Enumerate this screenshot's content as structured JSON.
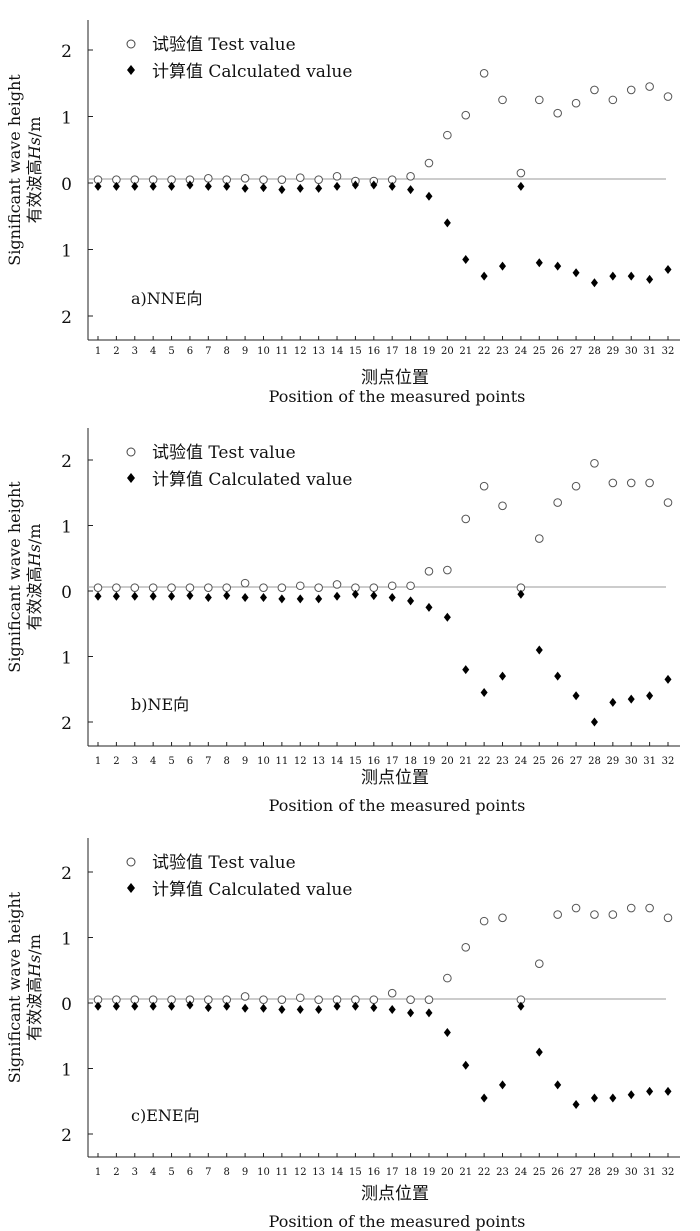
{
  "legend": {
    "test_label": "试验值 Test value",
    "calc_label": "计算值 Calculated value"
  },
  "y_axis_title": {
    "line1": "Significant wave height",
    "line2_prefix": "有效波高",
    "line2_italic": "Hs",
    "line2_suffix": "/m"
  },
  "x_axis_title": {
    "cn": "测点位置",
    "en": "Position of the measured points"
  },
  "chart_data": [
    {
      "type": "scatter",
      "panel_label": "a)NNE向",
      "x": [
        1,
        2,
        3,
        4,
        5,
        6,
        7,
        8,
        9,
        10,
        11,
        12,
        13,
        14,
        15,
        16,
        17,
        18,
        19,
        20,
        21,
        22,
        23,
        24,
        25,
        26,
        27,
        28,
        29,
        30,
        31,
        32
      ],
      "y_tick_labels": [
        "2",
        "1",
        "0",
        "1",
        "2"
      ],
      "ylim": [
        -2.5,
        2.2
      ],
      "series": [
        {
          "name": "试验值 Test value",
          "marker": "open-circle",
          "values": [
            0.05,
            0.05,
            0.05,
            0.05,
            0.05,
            0.05,
            0.07,
            0.05,
            0.07,
            0.05,
            0.05,
            0.08,
            0.05,
            0.1,
            0.03,
            0.03,
            0.05,
            0.1,
            0.3,
            0.72,
            1.02,
            1.65,
            1.25,
            0.15,
            1.25,
            1.05,
            1.2,
            1.4,
            1.25,
            1.4,
            1.45,
            1.3
          ]
        },
        {
          "name": "计算值 Calculated value",
          "marker": "filled-diamond",
          "values": [
            -0.05,
            -0.05,
            -0.05,
            -0.05,
            -0.05,
            -0.03,
            -0.05,
            -0.05,
            -0.08,
            -0.07,
            -0.1,
            -0.08,
            -0.08,
            -0.05,
            -0.03,
            -0.03,
            -0.05,
            -0.1,
            -0.2,
            -0.6,
            -1.15,
            -1.4,
            -1.25,
            -0.05,
            -1.2,
            -1.25,
            -1.35,
            -1.5,
            -1.4,
            -1.4,
            -1.45,
            -1.3
          ]
        }
      ]
    },
    {
      "type": "scatter",
      "panel_label": "b)NE向",
      "x": [
        1,
        2,
        3,
        4,
        5,
        6,
        7,
        8,
        9,
        10,
        11,
        12,
        13,
        14,
        15,
        16,
        17,
        18,
        19,
        20,
        21,
        22,
        23,
        24,
        25,
        26,
        27,
        28,
        29,
        30,
        31,
        32
      ],
      "y_tick_labels": [
        "2",
        "1",
        "0",
        "1",
        "2"
      ],
      "ylim": [
        -2.5,
        2.2
      ],
      "series": [
        {
          "name": "试验值 Test value",
          "marker": "open-circle",
          "values": [
            0.05,
            0.05,
            0.05,
            0.05,
            0.05,
            0.05,
            0.05,
            0.05,
            0.12,
            0.05,
            0.05,
            0.08,
            0.05,
            0.1,
            0.05,
            0.05,
            0.08,
            0.08,
            0.3,
            0.32,
            1.1,
            1.6,
            1.3,
            0.05,
            0.8,
            1.35,
            1.6,
            1.95,
            1.65,
            1.65,
            1.65,
            1.35
          ]
        },
        {
          "name": "计算值 Calculated value",
          "marker": "filled-diamond",
          "values": [
            -0.08,
            -0.08,
            -0.08,
            -0.08,
            -0.08,
            -0.07,
            -0.1,
            -0.07,
            -0.1,
            -0.1,
            -0.12,
            -0.12,
            -0.12,
            -0.08,
            -0.05,
            -0.07,
            -0.1,
            -0.15,
            -0.25,
            -0.4,
            -1.2,
            -1.55,
            -1.3,
            -0.05,
            -0.9,
            -1.3,
            -1.6,
            -2.0,
            -1.7,
            -1.65,
            -1.6,
            -1.35
          ]
        }
      ]
    },
    {
      "type": "scatter",
      "panel_label": "c)ENE向",
      "x": [
        1,
        2,
        3,
        4,
        5,
        6,
        7,
        8,
        9,
        10,
        11,
        12,
        13,
        14,
        15,
        16,
        17,
        18,
        19,
        20,
        21,
        22,
        23,
        24,
        25,
        26,
        27,
        28,
        29,
        30,
        31,
        32
      ],
      "y_tick_labels": [
        "2",
        "1",
        "0",
        "1",
        "2"
      ],
      "ylim": [
        -2.5,
        2.2
      ],
      "series": [
        {
          "name": "试验值 Test value",
          "marker": "open-circle",
          "values": [
            0.05,
            0.05,
            0.05,
            0.05,
            0.05,
            0.05,
            0.05,
            0.05,
            0.1,
            0.05,
            0.05,
            0.08,
            0.05,
            0.05,
            0.05,
            0.05,
            0.15,
            0.05,
            0.05,
            0.38,
            0.85,
            1.25,
            1.3,
            0.05,
            0.6,
            1.35,
            1.45,
            1.35,
            1.35,
            1.45,
            1.45,
            1.3
          ]
        },
        {
          "name": "计算值 Calculated value",
          "marker": "filled-diamond",
          "values": [
            -0.05,
            -0.05,
            -0.05,
            -0.05,
            -0.05,
            -0.03,
            -0.07,
            -0.05,
            -0.08,
            -0.08,
            -0.1,
            -0.1,
            -0.1,
            -0.05,
            -0.05,
            -0.07,
            -0.1,
            -0.15,
            -0.15,
            -0.45,
            -0.95,
            -1.45,
            -1.25,
            -0.05,
            -0.75,
            -1.25,
            -1.55,
            -1.45,
            -1.45,
            -1.4,
            -1.35,
            -1.35
          ]
        }
      ]
    }
  ]
}
